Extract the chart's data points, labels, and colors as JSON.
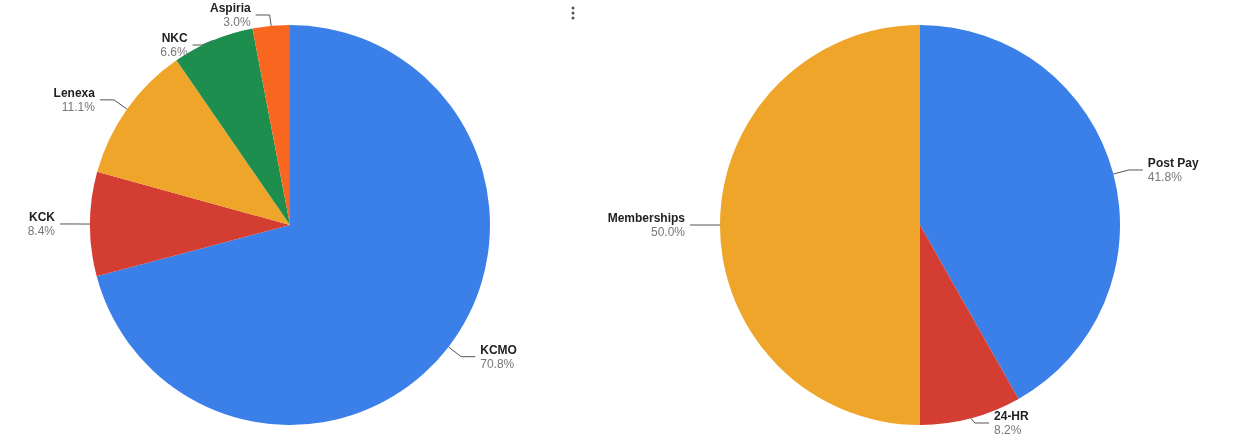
{
  "chart_data": [
    {
      "type": "pie",
      "categories": [
        "KCMO",
        "KCK",
        "Lenexa",
        "NKC",
        "Aspiria"
      ],
      "values": [
        70.8,
        8.4,
        11.1,
        6.6,
        3.0
      ],
      "colors": [
        "#3b80e9",
        "#d33d32",
        "#eea52a",
        "#1e8e4e",
        "#f8661f"
      ],
      "value_labels": [
        "70.8%",
        "8.4%",
        "11.1%",
        "6.6%",
        "3.0%"
      ]
    },
    {
      "type": "pie",
      "categories": [
        "Post Pay",
        "24-HR",
        "Memberships"
      ],
      "values": [
        41.8,
        8.2,
        50.0
      ],
      "colors": [
        "#3b80e9",
        "#d33d32",
        "#eea52a"
      ],
      "value_labels": [
        "41.8%",
        "8.2%",
        "50.0%"
      ]
    }
  ]
}
